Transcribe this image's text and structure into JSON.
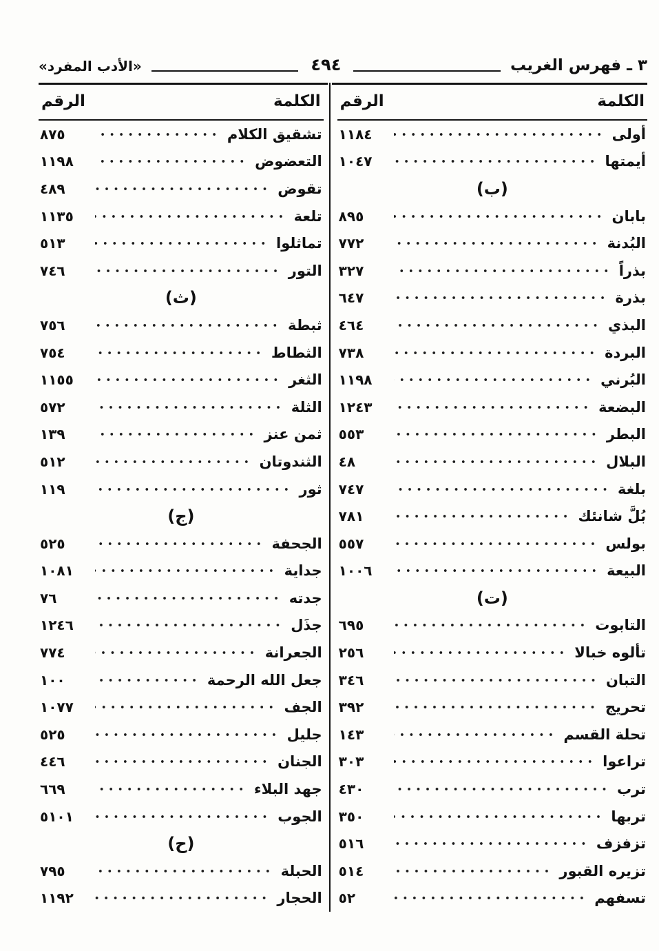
{
  "page": {
    "header": {
      "section_title": "٣ ـ فهرس الغريب",
      "page_number": "٤٩٤",
      "book_title": "«الأدب المفرد»"
    },
    "table_headers": {
      "word": "الكلمة",
      "number": "الرقم"
    }
  },
  "columns": {
    "right": {
      "rows": [
        {
          "word": "أولى",
          "num": "١١٨٤"
        },
        {
          "word": "أيمتها",
          "num": "١٠٤٧"
        },
        {
          "section": "(ب)"
        },
        {
          "word": "بابان",
          "num": "٨٩٥"
        },
        {
          "word": "البُدنة",
          "num": "٧٧٢"
        },
        {
          "word": "بذراً",
          "num": "٣٢٧"
        },
        {
          "word": "بذرة",
          "num": "٦٤٧"
        },
        {
          "word": "البذي",
          "num": "٤٦٤"
        },
        {
          "word": "البردة",
          "num": "٧٣٨"
        },
        {
          "word": "البُرني",
          "num": "١١٩٨"
        },
        {
          "word": "البضعة",
          "num": "١٢٤٣"
        },
        {
          "word": "البطر",
          "num": "٥٥٣"
        },
        {
          "word": "البلال",
          "num": "٤٨"
        },
        {
          "word": "بلغة",
          "num": "٧٤٧"
        },
        {
          "word": "بُلَّ شانئك",
          "num": "٧٨١"
        },
        {
          "word": "بولس",
          "num": "٥٥٧"
        },
        {
          "word": "البيعة",
          "num": "١٠٠٦"
        },
        {
          "section": "(ت)"
        },
        {
          "word": "التابوت",
          "num": "٦٩٥"
        },
        {
          "word": "تألوه خبالا",
          "num": "٢٥٦"
        },
        {
          "word": "التبان",
          "num": "٣٤٦"
        },
        {
          "word": "تحريج",
          "num": "٣٩٢"
        },
        {
          "word": "تحلة القسم",
          "num": "١٤٣"
        },
        {
          "word": "تراعوا",
          "num": "٣٠٣"
        },
        {
          "word": "ترب",
          "num": "٤٣٠"
        },
        {
          "word": "تربها",
          "num": "٣٥٠"
        },
        {
          "word": "تزفزف",
          "num": "٥١٦"
        },
        {
          "word": "تزيره القبور",
          "num": "٥١٤"
        },
        {
          "word": "تسفهم",
          "num": "٥٢"
        }
      ]
    },
    "left": {
      "rows": [
        {
          "word": "تشقيق الكلام",
          "num": "٨٧٥"
        },
        {
          "word": "التعضوض",
          "num": "١١٩٨"
        },
        {
          "word": "تقوض",
          "num": "٤٨٩"
        },
        {
          "word": "تلعة",
          "num": "١١٣٥"
        },
        {
          "word": "تماثلوا",
          "num": "٥١٣"
        },
        {
          "word": "التور",
          "num": "٧٤٦"
        },
        {
          "section": "(ث)"
        },
        {
          "word": "ثبطة",
          "num": "٧٥٦"
        },
        {
          "word": "الثطاط",
          "num": "٧٥٤"
        },
        {
          "word": "الثغر",
          "num": "١١٥٥"
        },
        {
          "word": "الثلة",
          "num": "٥٧٢"
        },
        {
          "word": "ثمن عنز",
          "num": "١٣٩"
        },
        {
          "word": "الثندوتان",
          "num": "٥١٢"
        },
        {
          "word": "ثور",
          "num": "١١٩"
        },
        {
          "section": "(ج)"
        },
        {
          "word": "الجحفة",
          "num": "٥٢٥"
        },
        {
          "word": "جداية",
          "num": "١٠٨١"
        },
        {
          "word": "جدته",
          "num": "٧٦"
        },
        {
          "word": "جذَل",
          "num": "١٢٤٦"
        },
        {
          "word": "الجعرانة",
          "num": "٧٧٤"
        },
        {
          "word": "جعل الله الرحمة",
          "num": "١٠٠"
        },
        {
          "word": "الجف",
          "num": "١٠٧٧"
        },
        {
          "word": "جليل",
          "num": "٥٢٥"
        },
        {
          "word": "الجنان",
          "num": "٤٤٦"
        },
        {
          "word": "جهد البلاء",
          "num": "٦٦٩"
        },
        {
          "word": "الجوب",
          "num": "٥١٠١"
        },
        {
          "section": "(ح)"
        },
        {
          "word": "الحبلة",
          "num": "٧٩٥"
        },
        {
          "word": "الحجار",
          "num": "١١٩٢"
        }
      ]
    }
  }
}
